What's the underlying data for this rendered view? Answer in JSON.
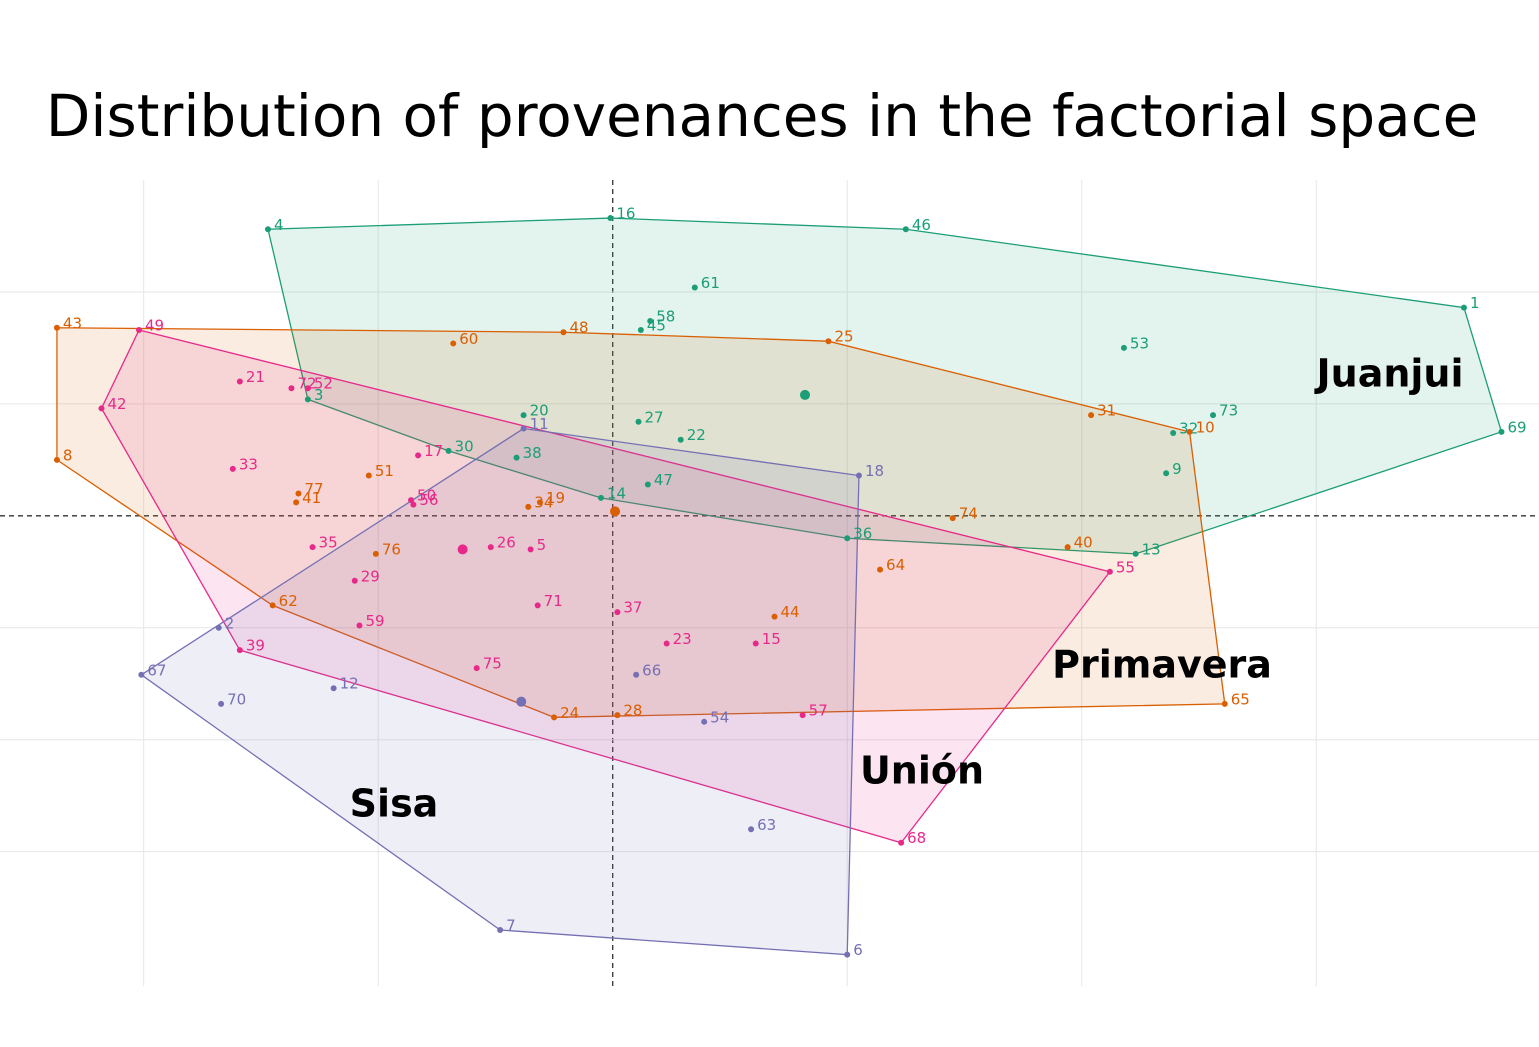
{
  "chart_data": {
    "type": "scatter",
    "title": "Distribution of provenances in the factorial space",
    "xlim": [
      -2.6,
      3.95
    ],
    "ylim": [
      -2.1,
      1.5
    ],
    "xticks": [
      -2,
      -1,
      0,
      1,
      2,
      3
    ],
    "yticks": [
      -1.5,
      -1,
      -0.5,
      0,
      0.5,
      1
    ],
    "grid": true,
    "series": [
      {
        "name": "Juanjui",
        "color": "#1b9e77",
        "labels": [
          "4",
          "16",
          "46",
          "1",
          "69",
          "13",
          "36",
          "14",
          "3",
          "61",
          "58",
          "45",
          "53",
          "20",
          "27",
          "22",
          "38",
          "30",
          "47",
          "73",
          "32",
          "9"
        ],
        "x": [
          -1.47,
          -0.01,
          1.25,
          3.63,
          3.79,
          2.23,
          1.0,
          -0.05,
          -1.3,
          0.35,
          0.16,
          0.12,
          2.18,
          -0.38,
          0.11,
          0.29,
          -0.41,
          -0.7,
          0.15,
          2.56,
          2.39,
          2.36
        ],
        "y": [
          1.28,
          1.33,
          1.28,
          0.93,
          0.375,
          -0.17,
          -0.1,
          0.08,
          0.52,
          1.02,
          0.87,
          0.83,
          0.75,
          0.45,
          0.42,
          0.34,
          0.26,
          0.29,
          0.14,
          0.45,
          0.37,
          0.19
        ],
        "centroid": [
          0.82,
          0.54
        ]
      },
      {
        "name": "Primavera",
        "color": "#d95f02",
        "labels": [
          "43",
          "8",
          "62",
          "24",
          "28",
          "65",
          "10",
          "25",
          "48",
          "60",
          "31",
          "51",
          "77",
          "41",
          "76",
          "19",
          "34",
          "74",
          "40",
          "64",
          "44"
        ],
        "x": [
          -2.37,
          -2.37,
          -1.45,
          -0.25,
          0.02,
          2.61,
          2.46,
          0.92,
          -0.21,
          -0.68,
          2.04,
          -1.04,
          -1.34,
          -1.35,
          -1.01,
          -0.31,
          -0.36,
          1.45,
          1.94,
          1.14,
          0.69
        ],
        "y": [
          0.84,
          0.25,
          -0.4,
          -0.9,
          -0.89,
          -0.84,
          0.375,
          0.78,
          0.82,
          0.77,
          0.45,
          0.18,
          0.1,
          0.06,
          -0.17,
          0.06,
          0.04,
          -0.01,
          -0.14,
          -0.24,
          -0.45
        ],
        "centroid": [
          0.01,
          0.02
        ]
      },
      {
        "name": "Unión",
        "color": "#e7298a",
        "labels": [
          "49",
          "42",
          "39",
          "68",
          "55",
          "21",
          "72",
          "52",
          "17",
          "33",
          "50",
          "56",
          "35",
          "26",
          "5",
          "29",
          "59",
          "71",
          "37",
          "23",
          "15",
          "75",
          "57"
        ],
        "x": [
          -2.02,
          -2.18,
          -1.59,
          1.23,
          2.12,
          -1.59,
          -1.37,
          -1.3,
          -0.83,
          -1.62,
          -0.86,
          -0.85,
          -1.28,
          -0.52,
          -0.35,
          -1.1,
          -1.08,
          -0.32,
          0.02,
          0.23,
          0.61,
          -0.58,
          0.81
        ],
        "y": [
          0.83,
          0.48,
          -0.6,
          -1.46,
          -0.25,
          0.6,
          0.57,
          0.57,
          0.27,
          0.21,
          0.07,
          0.05,
          -0.14,
          -0.14,
          -0.15,
          -0.29,
          -0.49,
          -0.4,
          -0.43,
          -0.57,
          -0.57,
          -0.68,
          -0.89
        ],
        "centroid": [
          -0.64,
          -0.15
        ]
      },
      {
        "name": "Sisa",
        "color": "#7570b3",
        "labels": [
          "11",
          "18",
          "6",
          "7",
          "67",
          "2",
          "12",
          "70",
          "66",
          "54",
          "63"
        ],
        "x": [
          -0.38,
          1.05,
          1.0,
          -0.48,
          -2.01,
          -1.68,
          -1.19,
          -1.67,
          0.1,
          0.39,
          0.59
        ],
        "y": [
          0.39,
          0.18,
          -1.96,
          -1.85,
          -0.71,
          -0.5,
          -0.77,
          -0.84,
          -0.71,
          -0.92,
          -1.4
        ],
        "centroid": [
          -0.39,
          -0.83
        ]
      }
    ]
  }
}
